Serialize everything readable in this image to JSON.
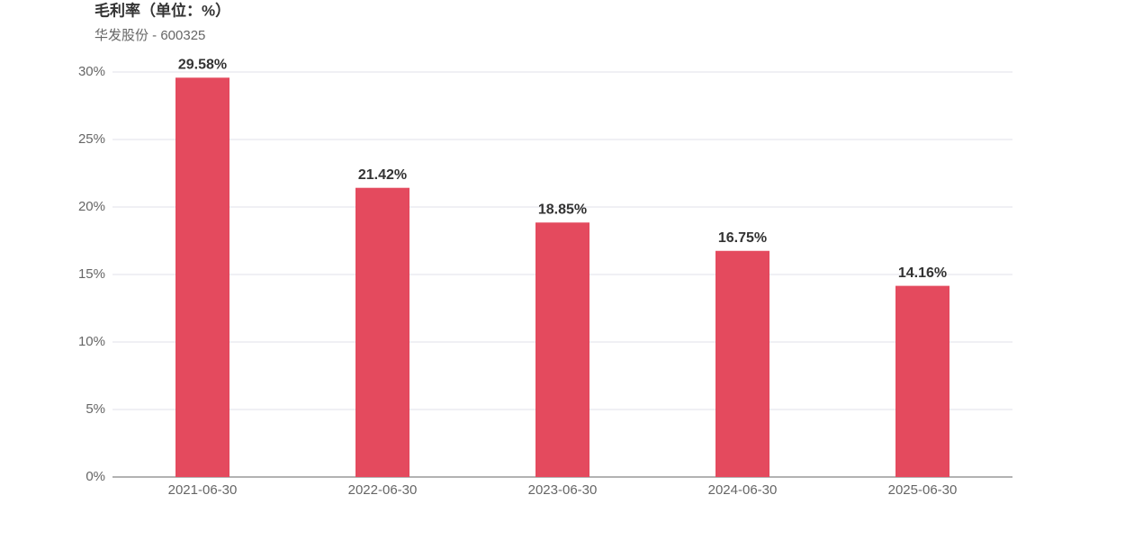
{
  "chart_data": {
    "type": "bar",
    "title": "毛利率（单位：%）",
    "subtitle": "华发股份 - 600325",
    "categories": [
      "2021-06-30",
      "2022-06-30",
      "2023-06-30",
      "2024-06-30",
      "2025-06-30"
    ],
    "values": [
      29.58,
      21.42,
      18.85,
      16.75,
      14.16
    ],
    "value_labels": [
      "29.58%",
      "21.42%",
      "18.85%",
      "16.75%",
      "14.16%"
    ],
    "color": "#e44a5e",
    "ylim": [
      0,
      30
    ],
    "yticks": [
      {
        "value": 0,
        "label": "0%"
      },
      {
        "value": 5,
        "label": "5%"
      },
      {
        "value": 10,
        "label": "10%"
      },
      {
        "value": 15,
        "label": "15%"
      },
      {
        "value": 20,
        "label": "20%"
      },
      {
        "value": 25,
        "label": "25%"
      },
      {
        "value": 30,
        "label": "30%"
      }
    ],
    "grid": true
  }
}
